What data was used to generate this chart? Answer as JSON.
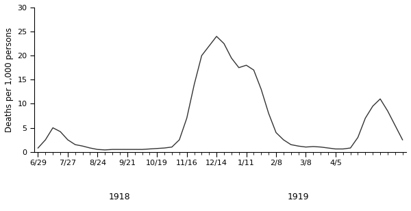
{
  "ylabel": "Deaths per 1,000 persons",
  "ylim": [
    0,
    30
  ],
  "yticks": [
    0,
    5,
    10,
    15,
    20,
    25,
    30
  ],
  "xlabel_1918": "1918",
  "xlabel_1919": "1919",
  "xtick_labels": [
    "6/29",
    "7/27",
    "8/24",
    "9/21",
    "10/19",
    "11/16",
    "12/14",
    "1/11",
    "2/8",
    "3/8",
    "4/5"
  ],
  "xtick_positions": [
    0,
    4,
    8,
    12,
    16,
    20,
    24,
    28,
    32,
    36,
    40
  ],
  "line_color": "#333333",
  "background_color": "#ffffff",
  "x_values": [
    0,
    1,
    2,
    3,
    4,
    5,
    6,
    7,
    8,
    9,
    10,
    11,
    12,
    13,
    14,
    15,
    16,
    17,
    18,
    19,
    20,
    21,
    22,
    23,
    24,
    25,
    26,
    27,
    28,
    29,
    30,
    31,
    32,
    33,
    34,
    35,
    36,
    37,
    38,
    39,
    40,
    41,
    42,
    43,
    44,
    45,
    46,
    47,
    48,
    49
  ],
  "y_values": [
    0.8,
    2.5,
    5.0,
    4.2,
    2.5,
    1.5,
    1.2,
    0.8,
    0.5,
    0.4,
    0.5,
    0.5,
    0.5,
    0.5,
    0.5,
    0.6,
    0.7,
    0.8,
    1.0,
    2.5,
    7.0,
    14.0,
    20.0,
    22.0,
    24.0,
    22.5,
    19.5,
    17.5,
    18.0,
    17.0,
    13.0,
    8.0,
    4.0,
    2.5,
    1.5,
    1.2,
    1.0,
    1.1,
    1.0,
    0.8,
    0.6,
    0.6,
    0.8,
    3.0,
    7.0,
    9.5,
    11.0,
    8.5,
    5.5,
    2.5
  ],
  "year_1918_x": 11,
  "year_1919_x": 35
}
